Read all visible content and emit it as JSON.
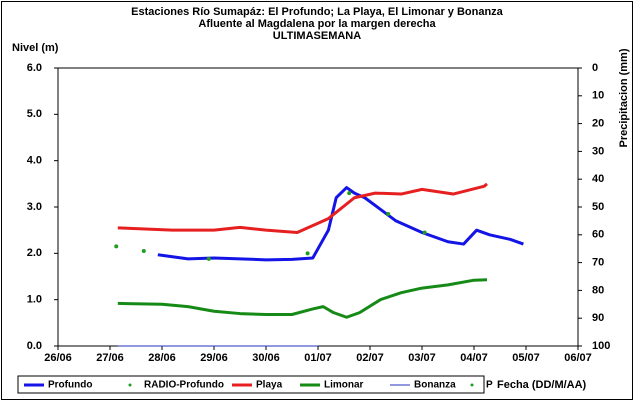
{
  "chart_data": {
    "type": "line",
    "title": "Estaciones Río Sumapáz: El Profundo; La Playa, El Limonar y Bonanza",
    "subtitle": "Afluente al Magdalena por la margen derecha",
    "subtitle2": "ULTIMASEMANA",
    "ylabel": "Nivel (m)",
    "y2label": "Precipitacion (mm)",
    "xlabel": "Fecha (DD/M/AA)",
    "xlim": [
      0,
      10
    ],
    "xticks": [
      {
        "value": 0,
        "label": "26/06"
      },
      {
        "value": 1,
        "label": "27/06"
      },
      {
        "value": 2,
        "label": "28/06"
      },
      {
        "value": 3,
        "label": "29/06"
      },
      {
        "value": 4,
        "label": "30/06"
      },
      {
        "value": 5,
        "label": "01/07"
      },
      {
        "value": 6,
        "label": "02/07"
      },
      {
        "value": 7,
        "label": "03/07"
      },
      {
        "value": 8,
        "label": "04/07"
      },
      {
        "value": 9,
        "label": "05/07"
      },
      {
        "value": 10,
        "label": "06/07"
      }
    ],
    "ylim": [
      0,
      6
    ],
    "yticks": [
      {
        "value": 0,
        "label": "0.0"
      },
      {
        "value": 1,
        "label": "1.0"
      },
      {
        "value": 2,
        "label": "2.0"
      },
      {
        "value": 3,
        "label": "3.0"
      },
      {
        "value": 4,
        "label": "4.0"
      },
      {
        "value": 5,
        "label": "5.0"
      },
      {
        "value": 6,
        "label": "6.0"
      }
    ],
    "y2lim": [
      0,
      100
    ],
    "y2_inverted": true,
    "y2ticks": [
      0,
      10,
      20,
      30,
      40,
      50,
      60,
      70,
      80,
      90,
      100
    ],
    "series": [
      {
        "name": "Profundo",
        "color": "#1414e6",
        "style": "line",
        "width": 3,
        "x": [
          1.92,
          2.5,
          3.0,
          3.5,
          4.0,
          4.5,
          4.9,
          5.05,
          5.2,
          5.35,
          5.55,
          5.7,
          5.9,
          6.2,
          6.5,
          7.0,
          7.5,
          7.8,
          8.05,
          8.3,
          8.7,
          8.95
        ],
        "values": [
          1.97,
          1.88,
          1.9,
          1.88,
          1.86,
          1.87,
          1.9,
          2.2,
          2.5,
          3.2,
          3.42,
          3.3,
          3.2,
          2.95,
          2.7,
          2.45,
          2.25,
          2.2,
          2.5,
          2.4,
          2.3,
          2.2
        ]
      },
      {
        "name": "RADIO-Profundo",
        "color": "#1e9e1e",
        "style": "dots",
        "x": [
          1.12,
          1.65,
          2.9,
          4.8,
          5.6,
          6.35,
          7.05
        ],
        "values": [
          2.15,
          2.05,
          1.88,
          2.0,
          3.3,
          2.85,
          2.45
        ]
      },
      {
        "name": "Playa",
        "color": "#e62020",
        "style": "line",
        "width": 3,
        "x": [
          1.15,
          2.2,
          3.0,
          3.5,
          4.0,
          4.6,
          5.2,
          5.7,
          6.1,
          6.6,
          7.0,
          7.6,
          8.2,
          8.25
        ],
        "values": [
          2.55,
          2.5,
          2.5,
          2.56,
          2.5,
          2.45,
          2.75,
          3.2,
          3.3,
          3.28,
          3.38,
          3.28,
          3.45,
          3.5
        ]
      },
      {
        "name": "Limonar",
        "color": "#168a16",
        "style": "line",
        "width": 3,
        "x": [
          1.15,
          2.0,
          2.5,
          3.0,
          3.5,
          4.0,
          4.5,
          4.9,
          5.1,
          5.3,
          5.55,
          5.8,
          6.2,
          6.6,
          7.0,
          7.5,
          8.0,
          8.25
        ],
        "values": [
          0.92,
          0.9,
          0.85,
          0.75,
          0.7,
          0.68,
          0.68,
          0.8,
          0.85,
          0.72,
          0.62,
          0.72,
          1.0,
          1.15,
          1.25,
          1.32,
          1.42,
          1.43
        ]
      },
      {
        "name": "Bonanza",
        "color": "#2030c0",
        "style": "line",
        "width": 1,
        "x": [
          1.15,
          3.0,
          5.0
        ],
        "values": [
          0,
          0,
          0
        ]
      },
      {
        "name": "P",
        "color": "#1e9e1e",
        "style": "dots",
        "axis": "y2",
        "x": [],
        "values": []
      }
    ]
  }
}
